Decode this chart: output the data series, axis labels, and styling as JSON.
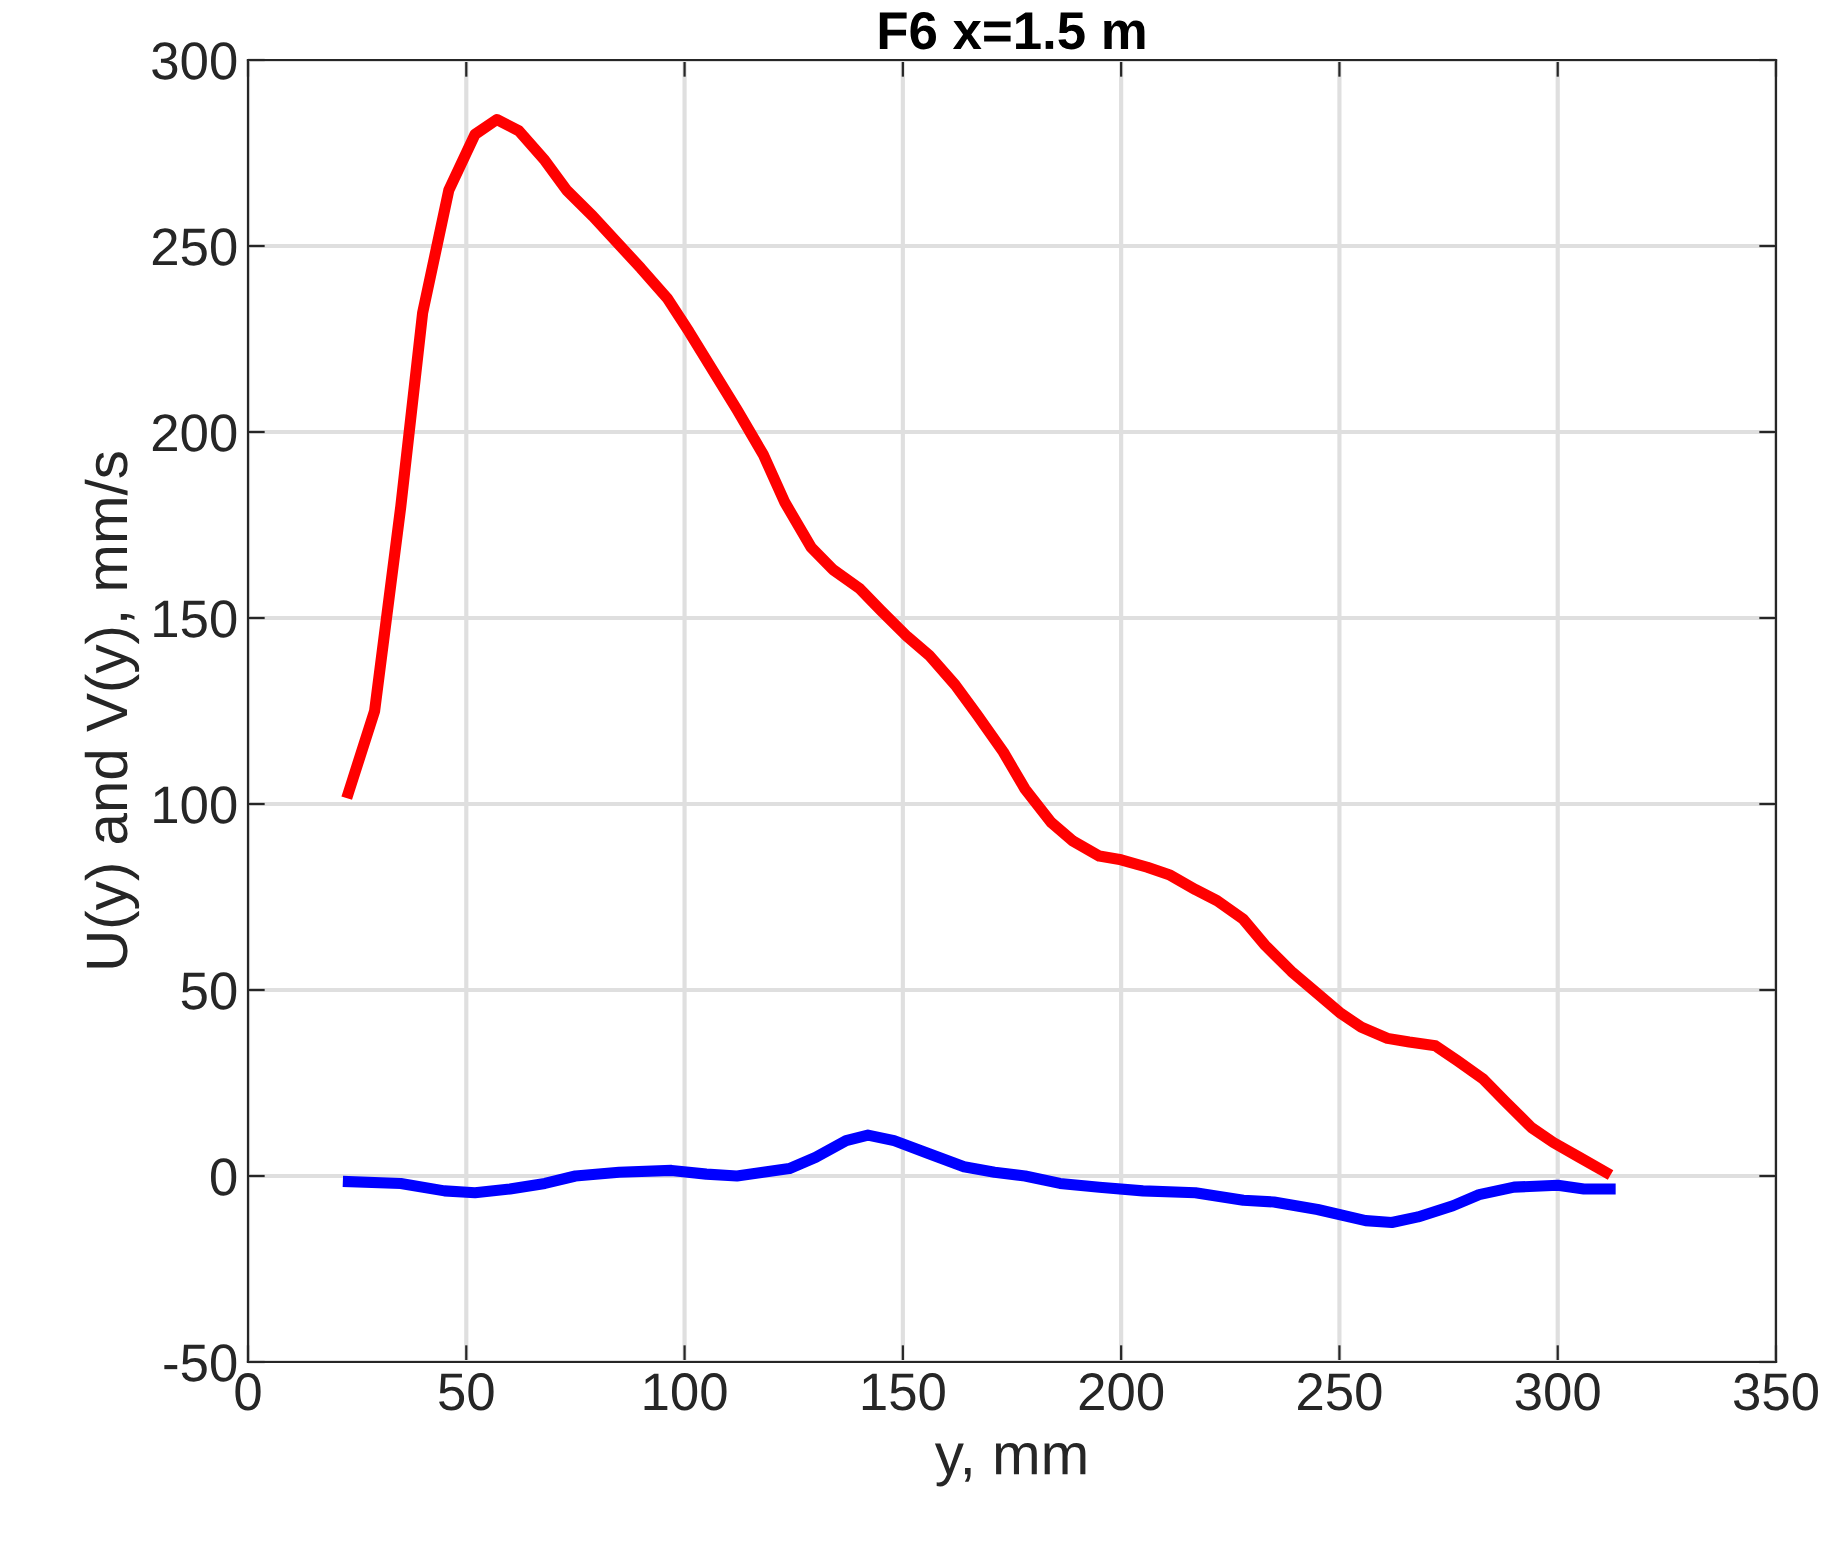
{
  "chart_data": {
    "type": "line",
    "title": "F6 x=1.5 m",
    "xlabel": "y, mm",
    "ylabel": "U(y) and V(y), mm/s",
    "xlim": [
      0,
      350
    ],
    "xticks": [
      0,
      50,
      100,
      150,
      200,
      250,
      300,
      350
    ],
    "ylim": [
      -50,
      300
    ],
    "yticks": [
      -50,
      0,
      50,
      100,
      150,
      200,
      250,
      300
    ],
    "grid": true,
    "marker": "none",
    "line_style": "solid",
    "series": [
      {
        "color": "#ff0000",
        "x": [
          23,
          29,
          35,
          40,
          46,
          52,
          57,
          62,
          68,
          73,
          79,
          90,
          96,
          101,
          112,
          118,
          123,
          129,
          134,
          140,
          145,
          151,
          156,
          162,
          167,
          173,
          178,
          184,
          189,
          195,
          200,
          206,
          211,
          217,
          222,
          228,
          233,
          239,
          244,
          250,
          255,
          261,
          266,
          272,
          277,
          283,
          288,
          294,
          299,
          305,
          311
        ],
        "values": [
          103,
          125,
          180,
          232,
          265,
          280,
          284,
          281,
          273,
          265,
          258,
          244,
          236,
          227,
          206,
          194,
          181,
          169,
          163,
          158,
          152,
          145,
          140,
          132,
          124,
          114,
          104,
          95,
          90,
          86,
          85,
          83,
          81,
          77,
          74,
          69,
          62,
          55,
          50,
          44,
          40,
          37,
          36,
          35,
          31,
          26,
          20,
          13,
          9,
          5,
          1
        ]
      },
      {
        "color": "#0000ff",
        "x": [
          23,
          35,
          45,
          52,
          60,
          68,
          75,
          85,
          97,
          105,
          112,
          118,
          124,
          130,
          137,
          142,
          148,
          156,
          164,
          171,
          178,
          186,
          195,
          205,
          217,
          228,
          235,
          245,
          256,
          262,
          268,
          276,
          282,
          290,
          300,
          306,
          312
        ],
        "values": [
          -1.5,
          -2,
          -4,
          -4.5,
          -3.5,
          -2,
          0,
          1,
          1.5,
          0.5,
          0,
          1,
          2,
          5,
          9.5,
          11,
          9.5,
          6,
          2.5,
          1,
          0,
          -2,
          -3,
          -4,
          -4.5,
          -6.5,
          -7,
          -9,
          -12,
          -12.5,
          -11,
          -8,
          -5,
          -3,
          -2.5,
          -3.5,
          -3.5
        ]
      }
    ]
  }
}
